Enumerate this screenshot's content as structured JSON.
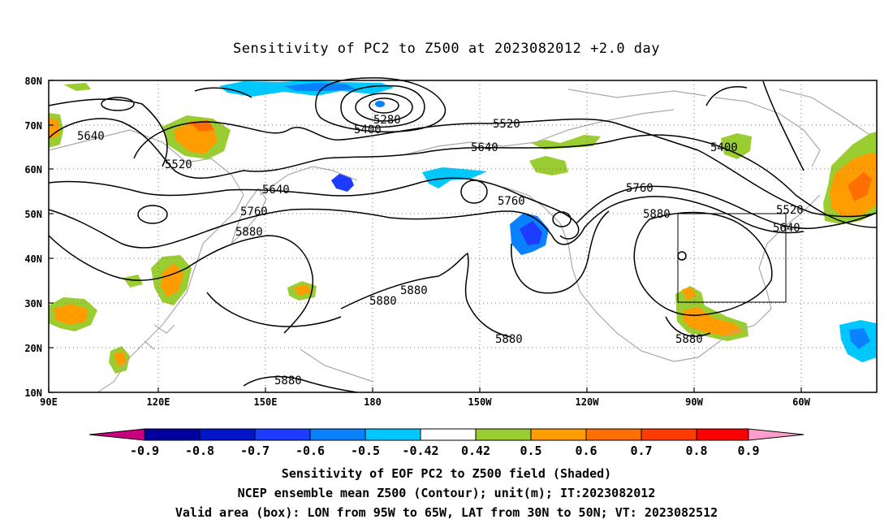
{
  "title": "Sensitivity of PC2 to Z500 at 2023082012 +2.0 day",
  "lat_ticks": [
    "80N",
    "70N",
    "60N",
    "50N",
    "40N",
    "30N",
    "20N",
    "10N"
  ],
  "lon_ticks": [
    "90E",
    "120E",
    "150E",
    "180",
    "150W",
    "120W",
    "90W",
    "60W"
  ],
  "contour_labels": [
    "5280",
    "5400",
    "5520",
    "5640",
    "5640",
    "5520",
    "5640",
    "5640",
    "5400",
    "5760",
    "5760",
    "5760",
    "5880",
    "5880",
    "5520",
    "5640",
    "5880",
    "5880",
    "5880",
    "5880",
    "5880"
  ],
  "colorbar": {
    "labels": [
      "-0.9",
      "-0.8",
      "-0.7",
      "-0.6",
      "-0.5",
      "-0.42",
      "0.42",
      "0.5",
      "0.6",
      "0.7",
      "0.8",
      "0.9"
    ],
    "colors": [
      "#c8007d",
      "#0000a0",
      "#0014c8",
      "#1e3cff",
      "#0a82ff",
      "#00c8ff",
      "#ffffff",
      "#9acd32",
      "#ff9c00",
      "#ff6e00",
      "#ff3c00",
      "#ff0000",
      "#ff9ecb"
    ]
  },
  "footer": {
    "line1": "Sensitivity of EOF PC2 to Z500 field (Shaded)",
    "line2": "NCEP ensemble mean Z500 (Contour); unit(m); IT:2023082012",
    "line3": "Valid area (box): LON from 95W to 65W, LAT from 30N to 50N; VT: 2023082512"
  },
  "valid_box": {
    "lon": [
      -95,
      -65
    ],
    "lat": [
      30,
      50
    ]
  }
}
